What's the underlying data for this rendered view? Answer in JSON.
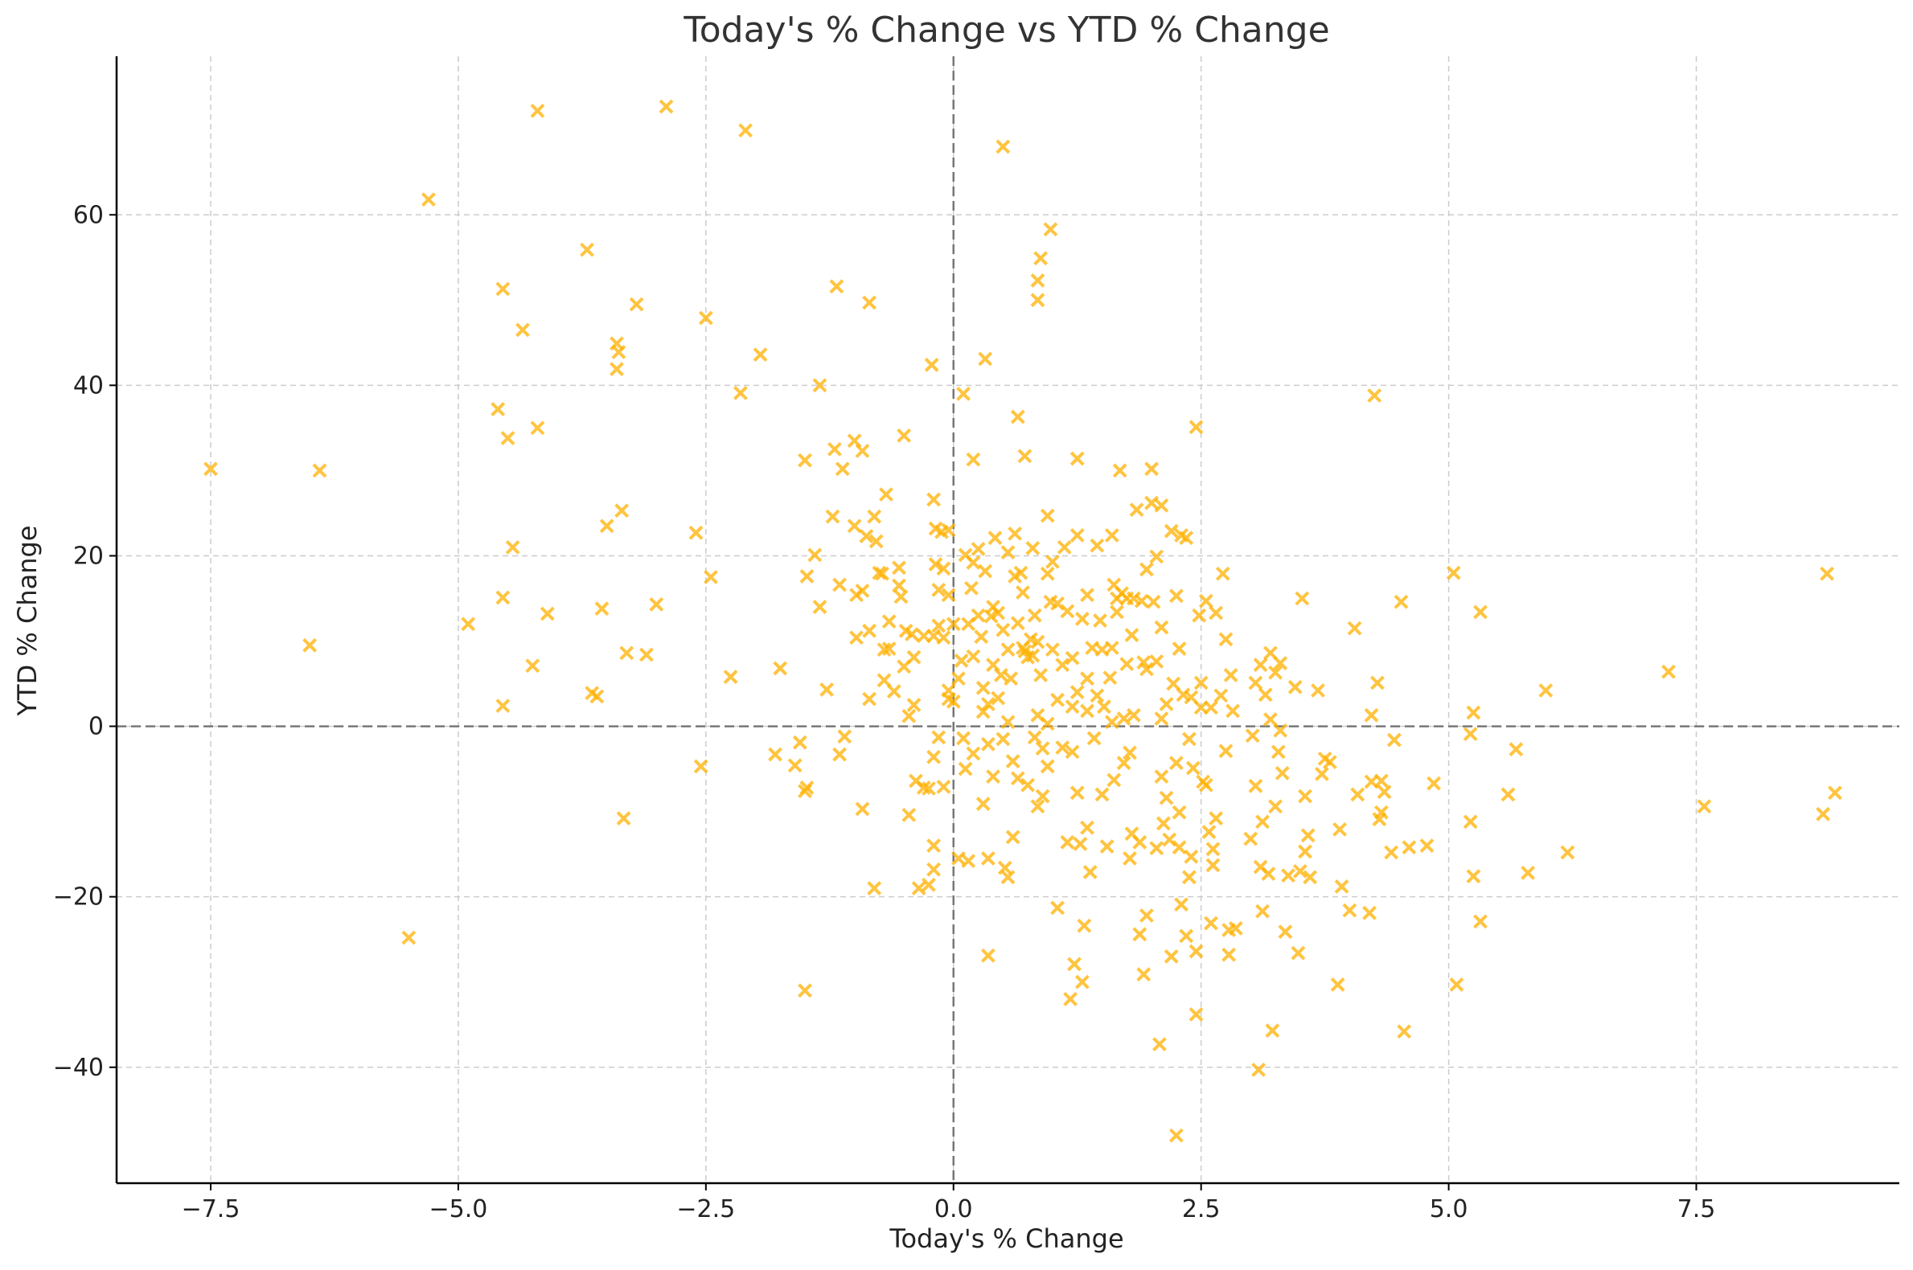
{
  "chart_data": {
    "type": "scatter",
    "title": "Today's % Change vs YTD % Change",
    "xlabel": "Today's % Change",
    "ylabel": "YTD % Change",
    "xlim": [
      -8.45,
      9.55
    ],
    "ylim": [
      -53.6,
      78.6
    ],
    "xticks": [
      -7.5,
      -5.0,
      -2.5,
      0.0,
      2.5,
      5.0,
      7.5
    ],
    "xtick_labels": [
      "−7.5",
      "−5.0",
      "−2.5",
      "0.0",
      "2.5",
      "5.0",
      "7.5"
    ],
    "yticks": [
      -40,
      -20,
      0,
      20,
      40,
      60
    ],
    "ytick_labels": [
      "−40",
      "−20",
      "0",
      "20",
      "40",
      "60"
    ],
    "grid": true,
    "zero_lines": true,
    "marker": "x",
    "color": "#FFB000",
    "points": [
      [
        -7.5,
        30.2
      ],
      [
        -6.5,
        9.5
      ],
      [
        -6.4,
        30.0
      ],
      [
        -5.5,
        -24.8
      ],
      [
        -5.3,
        61.8
      ],
      [
        -4.9,
        12.0
      ],
      [
        -4.6,
        37.2
      ],
      [
        -4.55,
        51.3
      ],
      [
        -4.55,
        15.1
      ],
      [
        -4.55,
        2.4
      ],
      [
        -4.5,
        33.8
      ],
      [
        -4.45,
        21.0
      ],
      [
        -4.35,
        46.5
      ],
      [
        -4.25,
        7.1
      ],
      [
        -4.2,
        72.2
      ],
      [
        -4.2,
        35.0
      ],
      [
        -4.1,
        13.2
      ],
      [
        -3.7,
        55.9
      ],
      [
        -3.65,
        3.9
      ],
      [
        -3.6,
        3.5
      ],
      [
        -3.55,
        13.8
      ],
      [
        -3.5,
        23.5
      ],
      [
        -3.4,
        44.9
      ],
      [
        -3.4,
        41.9
      ],
      [
        -3.38,
        43.9
      ],
      [
        -3.35,
        25.3
      ],
      [
        -3.33,
        -10.8
      ],
      [
        -3.3,
        8.6
      ],
      [
        -3.2,
        49.5
      ],
      [
        -3.1,
        8.4
      ],
      [
        -3.0,
        14.3
      ],
      [
        -2.9,
        72.7
      ],
      [
        -2.6,
        22.7
      ],
      [
        -2.55,
        -4.7
      ],
      [
        -2.5,
        47.9
      ],
      [
        -2.45,
        17.5
      ],
      [
        -2.25,
        5.8
      ],
      [
        -2.15,
        39.1
      ],
      [
        -2.1,
        69.9
      ],
      [
        -1.95,
        43.6
      ],
      [
        -1.75,
        6.8
      ],
      [
        -1.8,
        -3.3
      ],
      [
        -1.6,
        -4.6
      ],
      [
        -1.55,
        -1.9
      ],
      [
        -1.5,
        31.2
      ],
      [
        -1.48,
        17.6
      ],
      [
        -1.5,
        -7.6
      ],
      [
        -1.48,
        -7.2
      ],
      [
        -1.5,
        -31.0
      ],
      [
        -1.4,
        20.1
      ],
      [
        -1.35,
        40.0
      ],
      [
        -1.35,
        14.0
      ],
      [
        -1.28,
        4.3
      ],
      [
        -1.22,
        24.6
      ],
      [
        -1.2,
        32.5
      ],
      [
        -1.18,
        51.6
      ],
      [
        -1.15,
        16.6
      ],
      [
        -1.15,
        -3.3
      ],
      [
        -1.12,
        30.2
      ],
      [
        -1.1,
        -1.2
      ],
      [
        -1.0,
        33.5
      ],
      [
        -1.0,
        23.5
      ],
      [
        -0.98,
        15.4
      ],
      [
        -0.98,
        10.4
      ],
      [
        -0.92,
        32.3
      ],
      [
        -0.92,
        15.9
      ],
      [
        -0.92,
        -9.7
      ],
      [
        -0.88,
        22.3
      ],
      [
        -0.85,
        49.7
      ],
      [
        -0.85,
        11.2
      ],
      [
        -0.85,
        3.2
      ],
      [
        -0.8,
        24.6
      ],
      [
        -0.8,
        -19.0
      ],
      [
        -0.78,
        21.7
      ],
      [
        -0.75,
        18.0
      ],
      [
        -0.72,
        17.9
      ],
      [
        -0.7,
        9.0
      ],
      [
        -0.7,
        5.4
      ],
      [
        -0.68,
        27.2
      ],
      [
        -0.65,
        12.3
      ],
      [
        -0.65,
        9.1
      ],
      [
        -0.6,
        4.1
      ],
      [
        -0.55,
        18.6
      ],
      [
        -0.55,
        16.5
      ],
      [
        -0.53,
        15.2
      ],
      [
        -0.5,
        34.1
      ],
      [
        -0.5,
        7.0
      ],
      [
        -0.48,
        11.2
      ],
      [
        -0.45,
        1.2
      ],
      [
        -0.45,
        -10.4
      ],
      [
        -0.42,
        10.8
      ],
      [
        -0.4,
        8.1
      ],
      [
        -0.4,
        2.5
      ],
      [
        -0.38,
        -6.4
      ],
      [
        -0.35,
        -19.0
      ],
      [
        -0.3,
        10.6
      ],
      [
        -0.3,
        -7.2
      ],
      [
        -0.25,
        -7.3
      ],
      [
        -0.25,
        -18.6
      ],
      [
        -0.22,
        42.4
      ],
      [
        -0.2,
        26.6
      ],
      [
        -0.2,
        10.6
      ],
      [
        -0.2,
        -3.6
      ],
      [
        -0.2,
        -14.0
      ],
      [
        -0.2,
        -16.8
      ],
      [
        -0.18,
        23.2
      ],
      [
        -0.18,
        19.0
      ],
      [
        -0.15,
        16.0
      ],
      [
        -0.15,
        11.8
      ],
      [
        -0.15,
        -1.3
      ],
      [
        -0.12,
        22.8
      ],
      [
        -0.1,
        18.5
      ],
      [
        -0.1,
        10.4
      ],
      [
        -0.1,
        -7.1
      ],
      [
        -0.05,
        23.0
      ],
      [
        -0.05,
        15.4
      ],
      [
        -0.05,
        4.2
      ],
      [
        -0.05,
        3.2
      ],
      [
        0.0,
        12.0
      ],
      [
        0.0,
        2.9
      ],
      [
        0.05,
        5.6
      ],
      [
        0.05,
        -15.5
      ],
      [
        0.08,
        7.7
      ],
      [
        0.1,
        39.0
      ],
      [
        0.1,
        -1.4
      ],
      [
        0.12,
        20.1
      ],
      [
        0.12,
        -5.0
      ],
      [
        0.15,
        12.0
      ],
      [
        0.15,
        -15.8
      ],
      [
        0.18,
        16.2
      ],
      [
        0.2,
        31.3
      ],
      [
        0.2,
        19.2
      ],
      [
        0.2,
        8.2
      ],
      [
        0.2,
        -3.2
      ],
      [
        0.25,
        13.0
      ],
      [
        0.25,
        20.8
      ],
      [
        0.28,
        10.5
      ],
      [
        0.3,
        4.5
      ],
      [
        0.3,
        1.7
      ],
      [
        0.3,
        -9.1
      ],
      [
        0.32,
        43.1
      ],
      [
        0.32,
        18.2
      ],
      [
        0.35,
        2.6
      ],
      [
        0.35,
        -2.1
      ],
      [
        0.35,
        -15.5
      ],
      [
        0.35,
        -26.9
      ],
      [
        0.38,
        12.9
      ],
      [
        0.4,
        14.0
      ],
      [
        0.4,
        7.2
      ],
      [
        0.4,
        -5.9
      ],
      [
        0.42,
        22.1
      ],
      [
        0.45,
        13.3
      ],
      [
        0.45,
        3.3
      ],
      [
        0.48,
        6.0
      ],
      [
        0.5,
        11.3
      ],
      [
        0.5,
        -1.5
      ],
      [
        0.5,
        68.0
      ],
      [
        0.52,
        -16.6
      ],
      [
        0.55,
        20.4
      ],
      [
        0.55,
        9.0
      ],
      [
        0.55,
        0.5
      ],
      [
        0.55,
        -17.7
      ],
      [
        0.58,
        5.6
      ],
      [
        0.6,
        -4.1
      ],
      [
        0.6,
        -13.0
      ],
      [
        0.62,
        22.6
      ],
      [
        0.62,
        17.6
      ],
      [
        0.65,
        36.3
      ],
      [
        0.65,
        12.1
      ],
      [
        0.65,
        -6.1
      ],
      [
        0.68,
        18.0
      ],
      [
        0.7,
        15.7
      ],
      [
        0.7,
        9.2
      ],
      [
        0.72,
        31.7
      ],
      [
        0.72,
        8.8
      ],
      [
        0.75,
        8.1
      ],
      [
        0.75,
        -6.9
      ],
      [
        0.78,
        10.2
      ],
      [
        0.8,
        20.9
      ],
      [
        0.8,
        8.3
      ],
      [
        0.82,
        13.0
      ],
      [
        0.82,
        -1.3
      ],
      [
        0.85,
        52.3
      ],
      [
        0.85,
        50.0
      ],
      [
        0.85,
        9.9
      ],
      [
        0.85,
        1.3
      ],
      [
        0.85,
        -9.4
      ],
      [
        0.88,
        54.9
      ],
      [
        0.88,
        6.0
      ],
      [
        0.9,
        -2.6
      ],
      [
        0.9,
        -8.2
      ],
      [
        0.95,
        24.7
      ],
      [
        0.95,
        17.9
      ],
      [
        0.95,
        0.3
      ],
      [
        0.95,
        -4.7
      ],
      [
        0.98,
        58.3
      ],
      [
        0.98,
        14.6
      ],
      [
        1.0,
        9.0
      ],
      [
        1.0,
        19.3
      ],
      [
        1.05,
        14.4
      ],
      [
        1.05,
        3.1
      ],
      [
        1.05,
        -21.3
      ],
      [
        1.1,
        7.2
      ],
      [
        1.1,
        -2.5
      ],
      [
        1.12,
        21.0
      ],
      [
        1.15,
        13.5
      ],
      [
        1.15,
        -13.6
      ],
      [
        1.18,
        -32.0
      ],
      [
        1.2,
        8.0
      ],
      [
        1.2,
        2.3
      ],
      [
        1.2,
        -3.0
      ],
      [
        1.22,
        -27.9
      ],
      [
        1.25,
        31.4
      ],
      [
        1.25,
        22.4
      ],
      [
        1.25,
        4.0
      ],
      [
        1.25,
        -7.8
      ],
      [
        1.28,
        -13.8
      ],
      [
        1.3,
        12.6
      ],
      [
        1.3,
        -30.0
      ],
      [
        1.32,
        -23.4
      ],
      [
        1.35,
        15.4
      ],
      [
        1.35,
        5.6
      ],
      [
        1.35,
        1.8
      ],
      [
        1.35,
        -11.9
      ],
      [
        1.38,
        -17.1
      ],
      [
        1.4,
        9.2
      ],
      [
        1.42,
        -1.4
      ],
      [
        1.45,
        21.2
      ],
      [
        1.45,
        3.6
      ],
      [
        1.48,
        12.4
      ],
      [
        1.5,
        9.0
      ],
      [
        1.5,
        -8.0
      ],
      [
        1.52,
        2.3
      ],
      [
        1.55,
        -14.1
      ],
      [
        1.58,
        5.7
      ],
      [
        1.6,
        22.4
      ],
      [
        1.6,
        9.2
      ],
      [
        1.6,
        0.5
      ],
      [
        1.62,
        16.6
      ],
      [
        1.62,
        -6.3
      ],
      [
        1.65,
        15.0
      ],
      [
        1.65,
        13.4
      ],
      [
        1.68,
        30.0
      ],
      [
        1.7,
        15.6
      ],
      [
        1.72,
        0.9
      ],
      [
        1.72,
        -4.3
      ],
      [
        1.75,
        15.0
      ],
      [
        1.75,
        7.3
      ],
      [
        1.78,
        -15.5
      ],
      [
        1.78,
        -3.1
      ],
      [
        1.8,
        10.7
      ],
      [
        1.8,
        -12.6
      ],
      [
        1.82,
        15.0
      ],
      [
        1.82,
        1.3
      ],
      [
        1.85,
        25.4
      ],
      [
        1.88,
        -13.6
      ],
      [
        1.88,
        -24.4
      ],
      [
        1.9,
        14.7
      ],
      [
        1.92,
        7.5
      ],
      [
        1.92,
        -29.1
      ],
      [
        1.95,
        18.4
      ],
      [
        1.95,
        6.7
      ],
      [
        1.95,
        -22.2
      ],
      [
        2.0,
        30.2
      ],
      [
        2.0,
        26.2
      ],
      [
        2.02,
        14.6
      ],
      [
        2.05,
        19.9
      ],
      [
        2.05,
        7.6
      ],
      [
        2.05,
        -14.3
      ],
      [
        2.08,
        -37.3
      ],
      [
        2.1,
        25.9
      ],
      [
        2.1,
        11.6
      ],
      [
        2.1,
        0.9
      ],
      [
        2.1,
        -5.9
      ],
      [
        2.12,
        -11.4
      ],
      [
        2.15,
        2.6
      ],
      [
        2.15,
        -8.4
      ],
      [
        2.18,
        -13.3
      ],
      [
        2.2,
        22.9
      ],
      [
        2.2,
        -27.0
      ],
      [
        2.22,
        5.0
      ],
      [
        2.25,
        15.3
      ],
      [
        2.25,
        -4.3
      ],
      [
        2.25,
        -48.0
      ],
      [
        2.28,
        9.1
      ],
      [
        2.28,
        -10.1
      ],
      [
        2.28,
        -14.2
      ],
      [
        2.3,
        22.4
      ],
      [
        2.3,
        -20.9
      ],
      [
        2.32,
        3.7
      ],
      [
        2.35,
        22.1
      ],
      [
        2.35,
        -24.6
      ],
      [
        2.38,
        -1.5
      ],
      [
        2.38,
        -17.7
      ],
      [
        2.4,
        3.4
      ],
      [
        2.4,
        -15.3
      ],
      [
        2.42,
        -4.9
      ],
      [
        2.45,
        35.1
      ],
      [
        2.45,
        -26.4
      ],
      [
        2.45,
        -33.8
      ],
      [
        2.48,
        13.0
      ],
      [
        2.5,
        5.1
      ],
      [
        2.5,
        2.2
      ],
      [
        2.52,
        -6.5
      ],
      [
        2.55,
        14.7
      ],
      [
        2.55,
        -6.9
      ],
      [
        2.58,
        -12.4
      ],
      [
        2.6,
        2.2
      ],
      [
        2.6,
        -23.1
      ],
      [
        2.62,
        -14.4
      ],
      [
        2.62,
        -16.3
      ],
      [
        2.65,
        13.3
      ],
      [
        2.65,
        -10.8
      ],
      [
        2.7,
        3.6
      ],
      [
        2.72,
        17.9
      ],
      [
        2.75,
        -2.9
      ],
      [
        2.75,
        10.2
      ],
      [
        2.78,
        -23.9
      ],
      [
        2.78,
        -26.8
      ],
      [
        2.8,
        6.0
      ],
      [
        2.82,
        1.8
      ],
      [
        2.85,
        -23.7
      ],
      [
        3.0,
        -13.2
      ],
      [
        3.02,
        -1.1
      ],
      [
        3.05,
        5.1
      ],
      [
        3.05,
        -7.0
      ],
      [
        3.08,
        -40.3
      ],
      [
        3.1,
        7.2
      ],
      [
        3.1,
        -16.5
      ],
      [
        3.12,
        -11.2
      ],
      [
        3.12,
        -21.7
      ],
      [
        3.15,
        3.7
      ],
      [
        3.18,
        -17.3
      ],
      [
        3.2,
        8.6
      ],
      [
        3.2,
        0.8
      ],
      [
        3.22,
        -35.7
      ],
      [
        3.25,
        6.3
      ],
      [
        3.25,
        -9.4
      ],
      [
        3.28,
        -3.0
      ],
      [
        3.3,
        7.4
      ],
      [
        3.3,
        -0.5
      ],
      [
        3.32,
        -5.5
      ],
      [
        3.35,
        -24.1
      ],
      [
        3.38,
        -17.5
      ],
      [
        3.45,
        4.6
      ],
      [
        3.48,
        -26.6
      ],
      [
        3.5,
        -17.0
      ],
      [
        3.52,
        15.0
      ],
      [
        3.55,
        -8.2
      ],
      [
        3.55,
        -14.7
      ],
      [
        3.58,
        -12.8
      ],
      [
        3.6,
        -17.7
      ],
      [
        3.68,
        4.2
      ],
      [
        3.72,
        -5.6
      ],
      [
        3.75,
        -3.8
      ],
      [
        3.8,
        -4.2
      ],
      [
        3.88,
        -30.3
      ],
      [
        3.9,
        -12.1
      ],
      [
        3.92,
        -18.8
      ],
      [
        4.0,
        -21.6
      ],
      [
        4.05,
        11.5
      ],
      [
        4.08,
        -8.0
      ],
      [
        4.2,
        -21.9
      ],
      [
        4.22,
        -6.5
      ],
      [
        4.22,
        1.3
      ],
      [
        4.25,
        38.8
      ],
      [
        4.28,
        5.1
      ],
      [
        4.3,
        -10.9
      ],
      [
        4.32,
        -10.1
      ],
      [
        4.32,
        -6.4
      ],
      [
        4.35,
        -7.7
      ],
      [
        4.42,
        -14.8
      ],
      [
        4.45,
        -1.6
      ],
      [
        4.52,
        14.6
      ],
      [
        4.55,
        -35.8
      ],
      [
        4.6,
        -14.2
      ],
      [
        4.78,
        -14.0
      ],
      [
        4.85,
        -6.7
      ],
      [
        5.05,
        18.0
      ],
      [
        5.08,
        -30.3
      ],
      [
        5.22,
        -11.2
      ],
      [
        5.22,
        -0.9
      ],
      [
        5.25,
        1.6
      ],
      [
        5.25,
        -17.6
      ],
      [
        5.32,
        13.4
      ],
      [
        5.32,
        -22.9
      ],
      [
        5.6,
        -8.0
      ],
      [
        5.68,
        -2.7
      ],
      [
        5.8,
        -17.2
      ],
      [
        5.98,
        4.2
      ],
      [
        6.2,
        -14.8
      ],
      [
        7.22,
        6.4
      ],
      [
        7.58,
        -9.4
      ],
      [
        8.78,
        -10.3
      ],
      [
        8.82,
        17.9
      ],
      [
        8.9,
        -7.8
      ]
    ]
  }
}
